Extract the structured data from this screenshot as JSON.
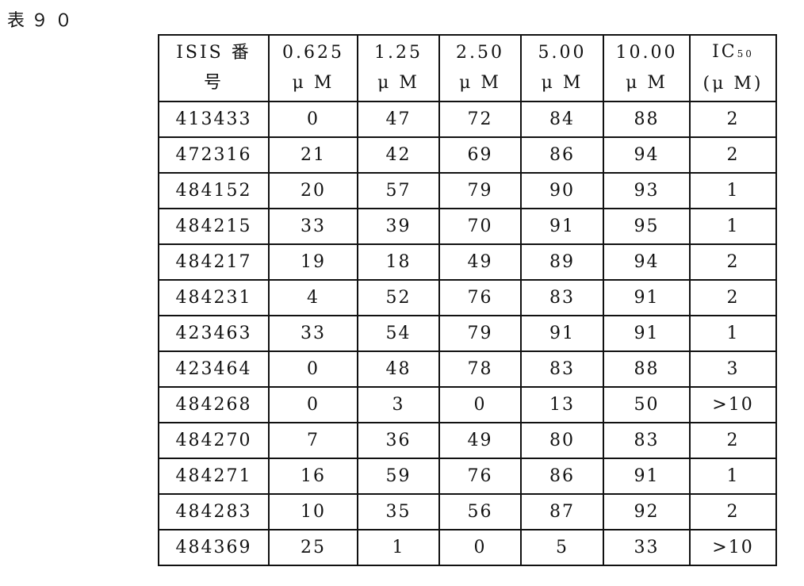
{
  "title": "表９０",
  "table": {
    "headers": [
      {
        "line1": "ISIS 番",
        "line2": "号"
      },
      {
        "line1": "0.625",
        "line2": "μ M"
      },
      {
        "line1": "1.25",
        "line2": "μ M"
      },
      {
        "line1": "2.50",
        "line2": "μ M"
      },
      {
        "line1": "5.00",
        "line2": "μ M"
      },
      {
        "line1": "10.00",
        "line2": "μ M"
      },
      {
        "line1": "IC",
        "sub": "50",
        "line2": "(μ M)"
      }
    ],
    "rows": [
      [
        "413433",
        "0",
        "47",
        "72",
        "84",
        "88",
        "2"
      ],
      [
        "472316",
        "21",
        "42",
        "69",
        "86",
        "94",
        "2"
      ],
      [
        "484152",
        "20",
        "57",
        "79",
        "90",
        "93",
        "1"
      ],
      [
        "484215",
        "33",
        "39",
        "70",
        "91",
        "95",
        "1"
      ],
      [
        "484217",
        "19",
        "18",
        "49",
        "89",
        "94",
        "2"
      ],
      [
        "484231",
        "4",
        "52",
        "76",
        "83",
        "91",
        "2"
      ],
      [
        "423463",
        "33",
        "54",
        "79",
        "91",
        "91",
        "1"
      ],
      [
        "423464",
        "0",
        "48",
        "78",
        "83",
        "88",
        "3"
      ],
      [
        "484268",
        "0",
        "3",
        "0",
        "13",
        "50",
        ">10"
      ],
      [
        "484270",
        "7",
        "36",
        "49",
        "80",
        "83",
        "2"
      ],
      [
        "484271",
        "16",
        "59",
        "76",
        "86",
        "91",
        "1"
      ],
      [
        "484283",
        "10",
        "35",
        "56",
        "87",
        "92",
        "2"
      ],
      [
        "484369",
        "25",
        "1",
        "0",
        "5",
        "33",
        ">10"
      ]
    ]
  }
}
